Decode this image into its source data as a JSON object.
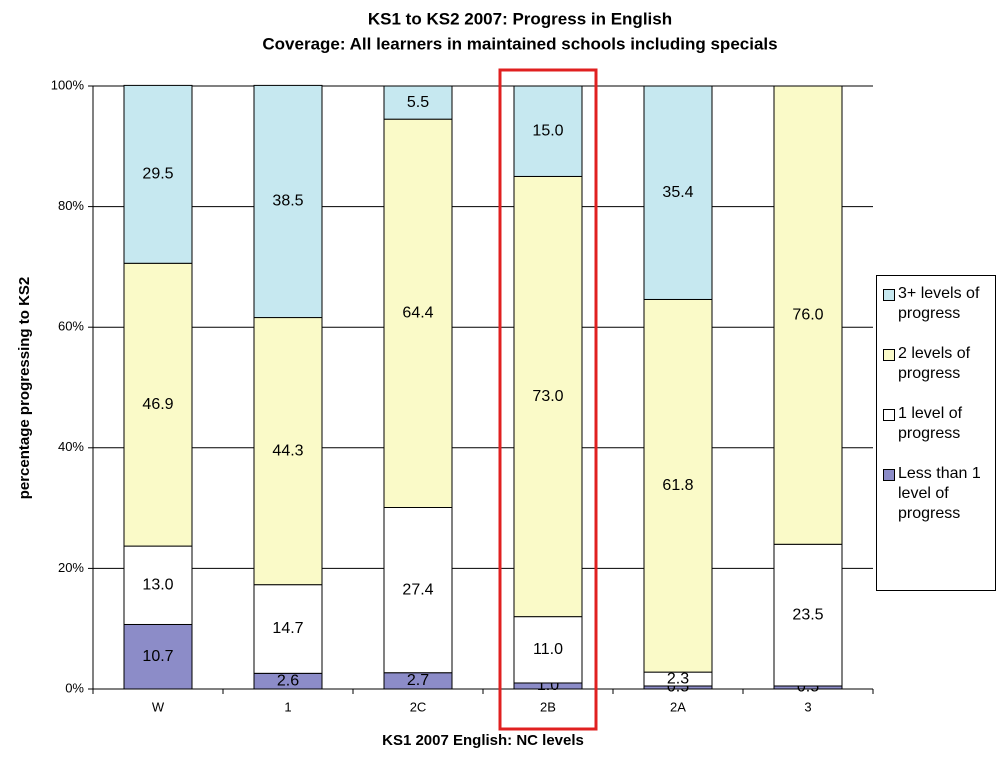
{
  "chart_data": {
    "type": "stacked_bar",
    "title": "KS1 to KS2 2007: Progress in English",
    "subtitle": "Coverage: All learners in maintained schools including specials",
    "x_label": "KS1 2007 English: NC levels",
    "y_label": "percentage progressing to KS2",
    "categories": [
      "W",
      "1",
      "2C",
      "2B",
      "2A",
      "3"
    ],
    "ylim": [
      0,
      100
    ],
    "yticks": [
      {
        "value": 0,
        "label": "0%"
      },
      {
        "value": 20,
        "label": "20%"
      },
      {
        "value": 40,
        "label": "40%"
      },
      {
        "value": 60,
        "label": "60%"
      },
      {
        "value": 80,
        "label": "80%"
      },
      {
        "value": 100,
        "label": "100%"
      }
    ],
    "grid": true,
    "legend": "right",
    "series": [
      {
        "name": "Less than 1 level of progress",
        "color": "#8c8cc8",
        "values": [
          10.7,
          2.6,
          2.7,
          1.0,
          0.5,
          0.5
        ],
        "value_labels": [
          "10.7",
          "2.6",
          "2.7",
          "1.0",
          "0.5",
          "0.5"
        ]
      },
      {
        "name": "1 level of progress",
        "color": "#ffffff",
        "values": [
          13.0,
          14.7,
          27.4,
          11.0,
          2.3,
          23.5
        ],
        "value_labels": [
          "13.0",
          "14.7",
          "27.4",
          "11.0",
          "2.3",
          "23.5"
        ]
      },
      {
        "name": "2 levels of progress",
        "color": "#fafac8",
        "values": [
          46.9,
          44.3,
          64.4,
          73.0,
          61.8,
          76.0
        ],
        "value_labels": [
          "46.9",
          "44.3",
          "64.4",
          "73.0",
          "61.8",
          "76.0"
        ]
      },
      {
        "name": "3+ levels of progress",
        "color": "#c6e8f0",
        "values": [
          29.5,
          38.5,
          5.5,
          15.0,
          35.4,
          null
        ],
        "value_labels": [
          "29.5",
          "38.5",
          "5.5",
          "15.0",
          "35.4",
          null
        ]
      }
    ]
  }
}
